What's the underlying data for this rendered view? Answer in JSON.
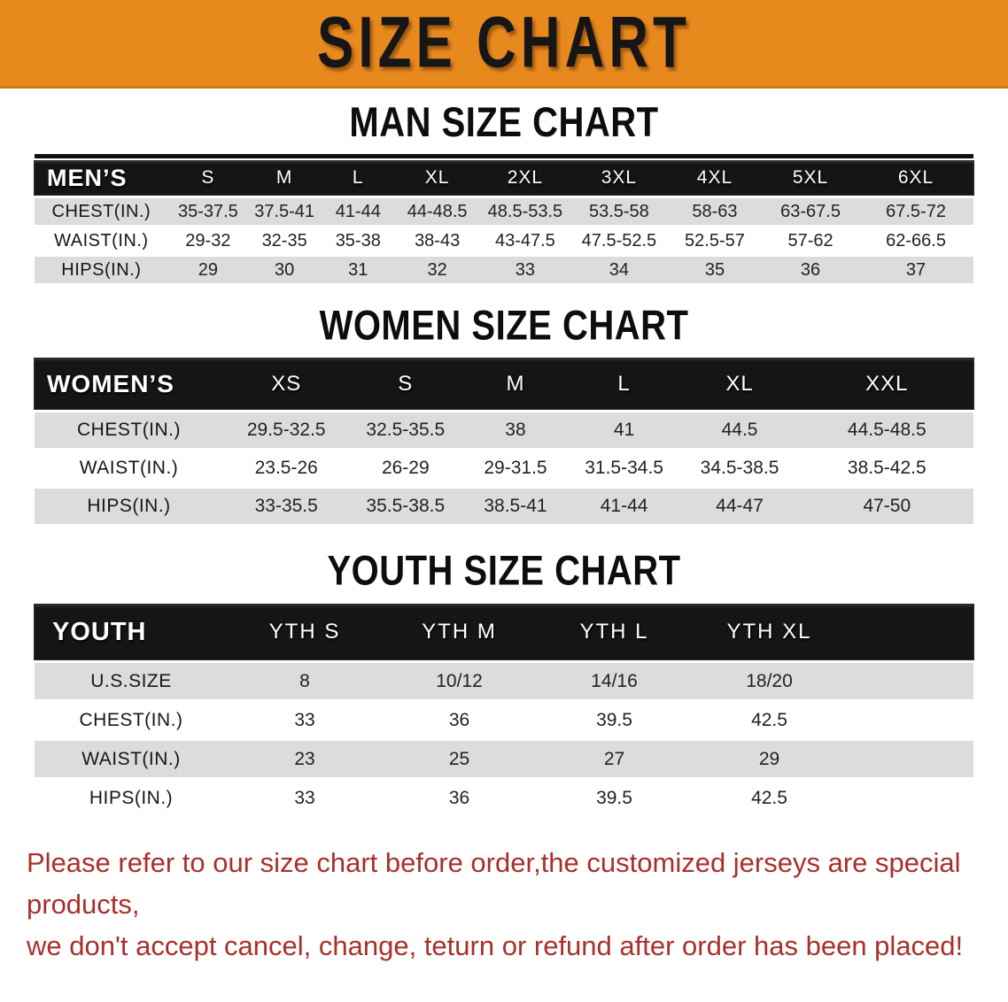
{
  "banner": {
    "title": "SIZE CHART",
    "bg_color": "#e8891e",
    "text_color": "#161616"
  },
  "colors": {
    "table_header_bg": "#151515",
    "row_gray": "#dcdcdc",
    "row_white": "#ffffff",
    "footer_red": "#a9302a"
  },
  "men_section": {
    "title": "MAN SIZE CHART",
    "table": {
      "header": [
        "MEN’S",
        "S",
        "M",
        "L",
        "XL",
        "2XL",
        "3XL",
        "4XL",
        "5XL",
        "6XL"
      ],
      "rows": [
        {
          "label": "CHEST(IN.)",
          "values": [
            "35-37.5",
            "37.5-41",
            "41-44",
            "44-48.5",
            "48.5-53.5",
            "53.5-58",
            "58-63",
            "63-67.5",
            "67.5-72"
          ]
        },
        {
          "label": "WAIST(IN.)",
          "values": [
            "29-32",
            "32-35",
            "35-38",
            "38-43",
            "43-47.5",
            "47.5-52.5",
            "52.5-57",
            "57-62",
            "62-66.5"
          ]
        },
        {
          "label": "HIPS(IN.)",
          "values": [
            "29",
            "30",
            "31",
            "32",
            "33",
            "34",
            "35",
            "36",
            "37"
          ]
        }
      ]
    }
  },
  "women_section": {
    "title": "WOMEN SIZE CHART",
    "table": {
      "header": [
        "WOMEN’S",
        "XS",
        "S",
        "M",
        "L",
        "XL",
        "XXL"
      ],
      "rows": [
        {
          "label": "CHEST(IN.)",
          "values": [
            "29.5-32.5",
            "32.5-35.5",
            "38",
            "41",
            "44.5",
            "44.5-48.5"
          ]
        },
        {
          "label": "WAIST(IN.)",
          "values": [
            "23.5-26",
            "26-29",
            "29-31.5",
            "31.5-34.5",
            "34.5-38.5",
            "38.5-42.5"
          ]
        },
        {
          "label": "HIPS(IN.)",
          "values": [
            "33-35.5",
            "35.5-38.5",
            "38.5-41",
            "41-44",
            "44-47",
            "47-50"
          ]
        }
      ]
    }
  },
  "youth_section": {
    "title": "YOUTH SIZE CHART",
    "table": {
      "header": [
        "YOUTH",
        "YTH S",
        "YTH M",
        "YTH L",
        "YTH XL"
      ],
      "rows": [
        {
          "label": "U.S.SIZE",
          "values": [
            "8",
            "10/12",
            "14/16",
            "18/20"
          ]
        },
        {
          "label": "CHEST(IN.)",
          "values": [
            "33",
            "36",
            "39.5",
            "42.5"
          ]
        },
        {
          "label": "WAIST(IN.)",
          "values": [
            "23",
            "25",
            "27",
            "29"
          ]
        },
        {
          "label": "HIPS(IN.)",
          "values": [
            "33",
            "36",
            "39.5",
            "42.5"
          ]
        }
      ]
    }
  },
  "footer": {
    "line1": "Please refer to our size chart before order,the customized jerseys are special products,",
    "line2": "we don't accept cancel, change, teturn or refund after order has been placed!"
  }
}
